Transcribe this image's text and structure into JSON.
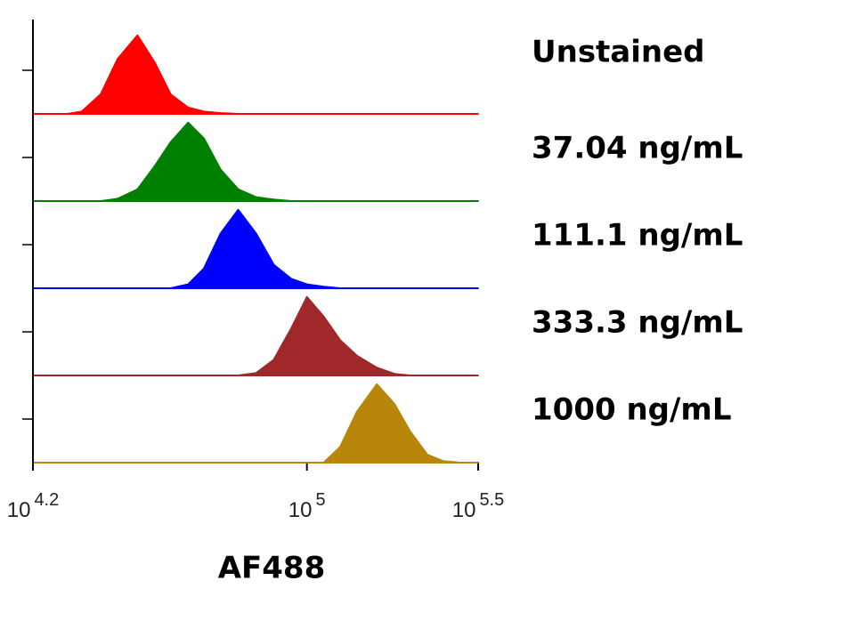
{
  "chart_data": {
    "type": "histogram-overlay",
    "xlabel": "AF488",
    "log_x": true,
    "xlim": [
      15849,
      316228
    ],
    "xticks": [
      {
        "value": 15849,
        "label": "104.2"
      },
      {
        "value": 100000,
        "label": "105"
      },
      {
        "value": 316228,
        "label": "105.5"
      }
    ],
    "ylim": [
      0,
      100
    ],
    "x": [
      16000,
      18000,
      20000,
      22000,
      25000,
      28000,
      32000,
      36000,
      40000,
      45000,
      50000,
      56000,
      63000,
      71000,
      80000,
      90000,
      100000,
      112000,
      125000,
      140000,
      160000,
      180000,
      200000,
      225000,
      250000,
      280000,
      316000
    ],
    "series": [
      {
        "name": "Unstained",
        "color": "#ff0000",
        "values": [
          0,
          0,
          0,
          3,
          25,
          70,
          100,
          65,
          25,
          8,
          3,
          1,
          0,
          0,
          0,
          0,
          0,
          0,
          0,
          0,
          0,
          0,
          0,
          0,
          0,
          0,
          0
        ]
      },
      {
        "name": "37.04 ng/mL",
        "color": "#008000",
        "values": [
          0,
          0,
          0,
          0,
          0,
          3,
          15,
          45,
          75,
          100,
          80,
          40,
          15,
          5,
          2,
          0,
          0,
          0,
          0,
          0,
          0,
          0,
          0,
          0,
          0,
          0,
          0
        ]
      },
      {
        "name": "111.1 ng/mL",
        "color": "#0000ff",
        "values": [
          0,
          0,
          0,
          0,
          0,
          0,
          0,
          0,
          0,
          5,
          25,
          70,
          100,
          70,
          30,
          12,
          5,
          2,
          0,
          0,
          0,
          0,
          0,
          0,
          0,
          0,
          0
        ]
      },
      {
        "name": "333.3 ng/mL",
        "color": "#a0282a",
        "values": [
          0,
          0,
          0,
          0,
          0,
          0,
          0,
          0,
          0,
          0,
          0,
          0,
          0,
          3,
          20,
          60,
          100,
          75,
          45,
          25,
          10,
          2,
          0,
          0,
          0,
          0,
          0
        ]
      },
      {
        "name": "1000 ng/mL",
        "color": "#b8860b",
        "values": [
          0,
          0,
          0,
          0,
          0,
          0,
          0,
          0,
          0,
          0,
          0,
          0,
          0,
          0,
          0,
          0,
          0,
          0,
          20,
          65,
          100,
          75,
          40,
          10,
          2,
          0,
          0
        ]
      }
    ]
  }
}
